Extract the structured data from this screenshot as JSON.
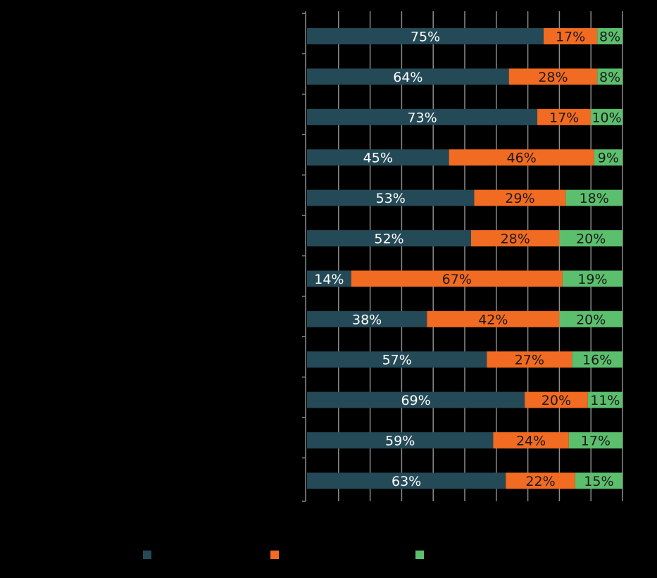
{
  "chart_data": {
    "type": "bar",
    "orientation": "horizontal",
    "stacked": true,
    "percent_stacked": true,
    "grid": true,
    "legend_position": "bottom",
    "xlim": [
      0,
      100
    ],
    "row_count": 12,
    "series": [
      {
        "color": "#254a57",
        "label_color": "#ffffff",
        "values": [
          75,
          64,
          73,
          45,
          53,
          52,
          14,
          38,
          57,
          69,
          59,
          63
        ],
        "labels": [
          "75%",
          "64%",
          "73%",
          "45%",
          "53%",
          "52%",
          "14%",
          "38%",
          "57%",
          "69%",
          "59%",
          "63%"
        ]
      },
      {
        "color": "#f26b23",
        "label_color": "#1a1a1a",
        "values": [
          17,
          28,
          17,
          46,
          29,
          28,
          67,
          42,
          27,
          20,
          24,
          22
        ],
        "labels": [
          "17%",
          "28%",
          "17%",
          "46%",
          "29%",
          "28%",
          "67%",
          "42%",
          "27%",
          "20%",
          "24%",
          "22%"
        ]
      },
      {
        "color": "#5cbf6e",
        "label_color": "#1a1a1a",
        "values": [
          8,
          8,
          10,
          9,
          18,
          20,
          19,
          20,
          16,
          11,
          17,
          15
        ],
        "labels": [
          "8%",
          "8%",
          "10%",
          "9%",
          "18%",
          "20%",
          "19%",
          "20%",
          "16%",
          "11%",
          "17%",
          "15%"
        ]
      }
    ]
  }
}
